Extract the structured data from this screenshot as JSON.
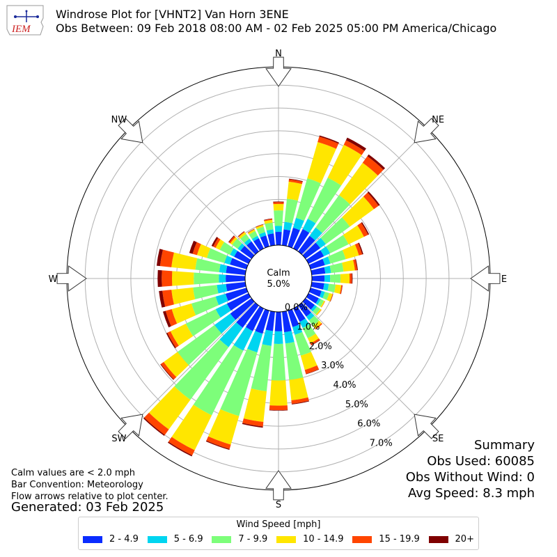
{
  "header": {
    "title": "Windrose Plot for [VHNT2] Van Horn 3ENE",
    "subtitle": "Obs Between: 09 Feb 2018 08:00 AM - 02 Feb 2025 05:00 PM America/Chicago",
    "logo_text": "IEM"
  },
  "summary": {
    "heading": "Summary",
    "obs_used": "Obs Used: 60085",
    "obs_without_wind": "Obs Without Wind: 0",
    "avg_speed": "Avg Speed: 8.3 mph"
  },
  "notes": {
    "calm_note": "Calm values are < 2.0 mph",
    "convention": "Bar Convention: Meteorology",
    "arrows": "Flow arrows relative to plot center.",
    "generated": "Generated: 03 Feb 2025"
  },
  "legend": {
    "title": "Wind Speed [mph]",
    "items": [
      {
        "label": "2 - 4.9",
        "color": "#0a2cff"
      },
      {
        "label": "5 - 6.9",
        "color": "#00d5f0"
      },
      {
        "label": "7 - 9.9",
        "color": "#7dfe7a"
      },
      {
        "label": "10 - 14.9",
        "color": "#ffe600"
      },
      {
        "label": "15 - 19.9",
        "color": "#ff4500"
      },
      {
        "label": "20+",
        "color": "#7f0000"
      }
    ]
  },
  "chart_data": {
    "type": "windrose",
    "directions_deg": [
      0,
      10,
      20,
      30,
      40,
      50,
      60,
      70,
      80,
      90,
      100,
      110,
      120,
      130,
      140,
      150,
      160,
      170,
      180,
      190,
      200,
      210,
      220,
      230,
      240,
      250,
      260,
      270,
      280,
      290,
      300,
      310,
      320,
      330,
      340,
      350
    ],
    "speed_bins": [
      "2 - 4.9",
      "5 - 6.9",
      "7 - 9.9",
      "10 - 14.9",
      "15 - 19.9",
      "20+"
    ],
    "colors": [
      "#0a2cff",
      "#00d5f0",
      "#7dfe7a",
      "#ffe600",
      "#ff4500",
      "#7f0000"
    ],
    "series_cumulative_percent": [
      [
        0.58,
        0.84,
        1.52,
        1.8,
        1.88,
        1.91
      ],
      [
        0.7,
        1.03,
        2.05,
        2.8,
        2.9,
        2.93
      ],
      [
        0.85,
        1.3,
        3.1,
        4.75,
        5.0,
        5.05
      ],
      [
        0.95,
        1.45,
        3.45,
        5.05,
        5.27,
        5.4
      ],
      [
        0.85,
        1.3,
        3.05,
        4.8,
        5.15,
        5.25
      ],
      [
        0.8,
        1.1,
        2.4,
        3.7,
        3.95,
        4.02
      ],
      [
        0.75,
        1.05,
        1.95,
        2.7,
        2.9,
        2.95
      ],
      [
        0.65,
        0.9,
        1.6,
        2.2,
        2.35,
        2.4
      ],
      [
        0.6,
        0.85,
        1.4,
        1.9,
        2.0,
        2.03
      ],
      [
        0.55,
        0.8,
        1.25,
        1.65,
        1.75,
        1.78
      ],
      [
        0.55,
        0.75,
        1.05,
        1.3,
        1.35,
        1.36
      ],
      [
        0.5,
        0.65,
        0.85,
        1.0,
        1.02,
        1.03
      ],
      [
        0.5,
        0.6,
        0.75,
        0.8,
        0.81,
        0.81
      ],
      [
        0.5,
        0.62,
        0.8,
        0.86,
        0.87,
        0.87
      ],
      [
        0.6,
        0.8,
        1.1,
        1.25,
        1.3,
        1.3
      ],
      [
        0.65,
        0.95,
        1.45,
        1.7,
        1.78,
        1.8
      ],
      [
        0.75,
        1.1,
        2.05,
        2.7,
        2.88,
        2.9
      ],
      [
        0.9,
        1.4,
        3.0,
        3.9,
        4.05,
        4.08
      ],
      [
        0.85,
        1.4,
        3.0,
        4.1,
        4.3,
        4.32
      ],
      [
        0.85,
        1.5,
        3.5,
        4.85,
        5.05,
        5.1
      ],
      [
        1.05,
        1.9,
        4.8,
        6.1,
        6.3,
        6.34
      ],
      [
        1.1,
        2.05,
        5.2,
        6.9,
        7.15,
        7.2
      ],
      [
        1.2,
        2.25,
        5.1,
        6.7,
        7.0,
        7.05
      ],
      [
        1.15,
        2.0,
        4.0,
        4.75,
        4.9,
        4.93
      ],
      [
        1.05,
        1.6,
        3.05,
        3.8,
        3.95,
        4.0
      ],
      [
        0.95,
        1.4,
        2.5,
        3.4,
        3.68,
        3.8
      ],
      [
        0.85,
        1.25,
        2.3,
        3.25,
        3.65,
        3.8
      ],
      [
        0.85,
        1.15,
        2.25,
        3.2,
        3.65,
        3.83
      ],
      [
        0.85,
        1.15,
        2.2,
        3.25,
        3.75,
        3.9
      ],
      [
        0.75,
        1.0,
        1.8,
        2.25,
        2.45,
        2.6
      ],
      [
        0.7,
        0.9,
        1.4,
        1.6,
        1.72,
        1.8
      ],
      [
        0.6,
        0.75,
        1.05,
        1.15,
        1.22,
        1.25
      ],
      [
        0.55,
        0.7,
        0.95,
        1.05,
        1.08,
        1.1
      ],
      [
        0.5,
        0.62,
        0.85,
        0.93,
        0.95,
        0.96
      ],
      [
        0.5,
        0.65,
        0.9,
        0.98,
        1.0,
        1.01
      ],
      [
        0.52,
        0.7,
        1.0,
        1.12,
        1.16,
        1.18
      ]
    ],
    "r_ticks": [
      0,
      1,
      2,
      3,
      4,
      5,
      6,
      7
    ],
    "r_tick_labels": [
      "0.0%",
      "1.0%",
      "2.0%",
      "3.0%",
      "4.0%",
      "5.0%",
      "6.0%",
      "7.0%"
    ],
    "r_max": 7.8,
    "calm_label": "Calm",
    "calm_value": "5.0%",
    "compass_labels": [
      {
        "dir": 0,
        "label": "N"
      },
      {
        "dir": 45,
        "label": "NE"
      },
      {
        "dir": 90,
        "label": "E"
      },
      {
        "dir": 135,
        "label": "SE"
      },
      {
        "dir": 180,
        "label": "S"
      },
      {
        "dir": 225,
        "label": "SW"
      },
      {
        "dir": 270,
        "label": "W"
      },
      {
        "dir": 315,
        "label": "NW"
      }
    ],
    "grid": true
  }
}
